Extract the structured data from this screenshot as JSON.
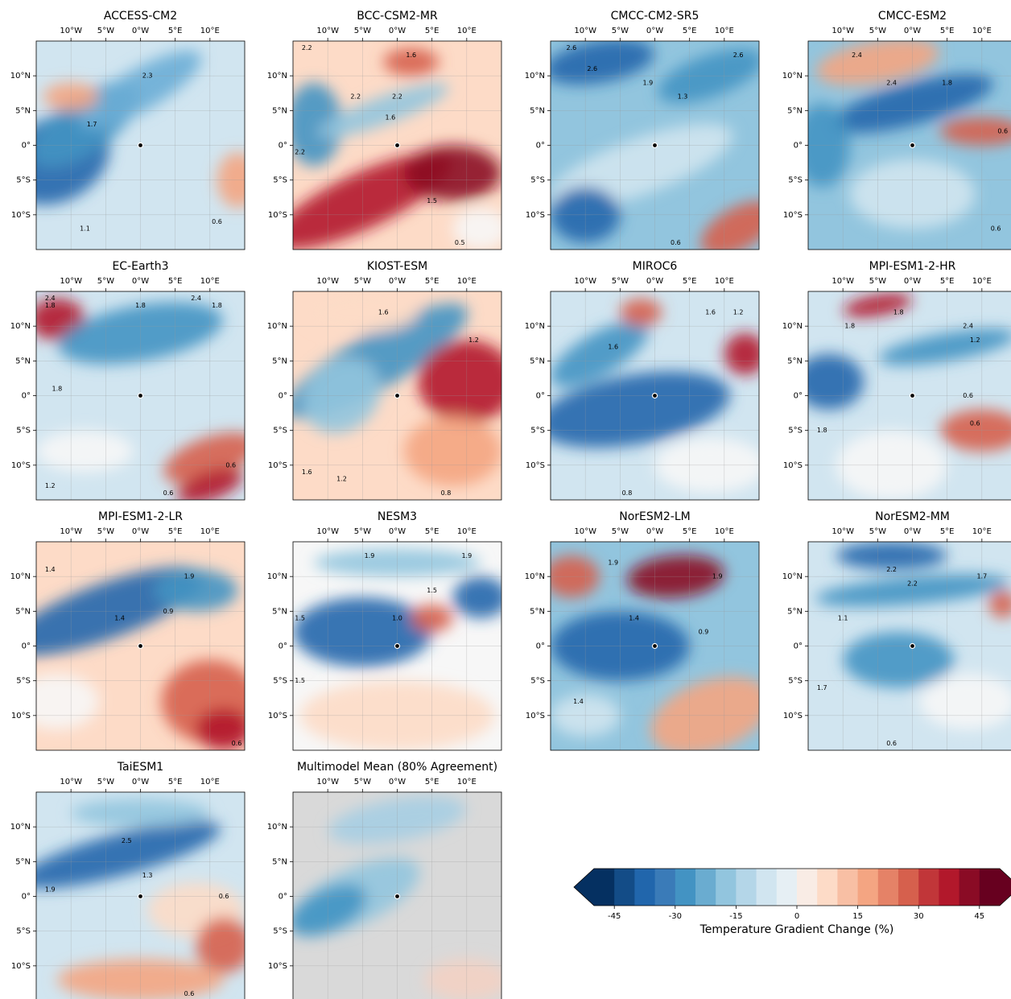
{
  "chart_data": {
    "type": "map",
    "lon_lim": [
      -15,
      15
    ],
    "lat_lim": [
      -15,
      15
    ],
    "lon_ticks": [
      {
        "value": -10,
        "label": "10°W"
      },
      {
        "value": -5,
        "label": "5°W"
      },
      {
        "value": 0,
        "label": "0°W"
      },
      {
        "value": 5,
        "label": "5°E"
      },
      {
        "value": 10,
        "label": "10°E"
      }
    ],
    "lat_ticks": [
      {
        "value": 10,
        "label": "10°N"
      },
      {
        "value": 5,
        "label": "5°N"
      },
      {
        "value": 0,
        "label": "0°"
      },
      {
        "value": -5,
        "label": "5°S"
      },
      {
        "value": -10,
        "label": "10°S"
      }
    ],
    "grid": true,
    "panels": [
      {
        "title": "ACCESS-CM2",
        "contour_labels": [
          2.3,
          1.7,
          1.1,
          0.6
        ]
      },
      {
        "title": "BCC-CSM2-MR",
        "contour_labels": [
          2.2,
          1.6,
          2.2,
          2.2,
          1.6,
          2.2,
          1.5,
          0.5
        ]
      },
      {
        "title": "CMCC-CM2-SR5",
        "contour_labels": [
          2.6,
          2.6,
          2.6,
          1.9,
          1.3,
          0.6
        ]
      },
      {
        "title": "CMCC-ESM2",
        "contour_labels": [
          2.4,
          2.4,
          1.8,
          0.6,
          0.6
        ]
      },
      {
        "title": "EC-Earth3",
        "contour_labels": [
          2.4,
          1.8,
          1.8,
          2.4,
          1.8,
          1.8,
          0.6,
          0.6,
          1.2
        ]
      },
      {
        "title": "KIOST-ESM",
        "contour_labels": [
          1.6,
          1.2,
          1.6,
          1.2,
          0.8
        ]
      },
      {
        "title": "MIROC6",
        "contour_labels": [
          1.6,
          1.6,
          1.2,
          0.8
        ]
      },
      {
        "title": "MPI-ESM1-2-HR",
        "contour_labels": [
          1.8,
          1.8,
          2.4,
          1.2,
          0.6,
          0.6,
          1.8
        ]
      },
      {
        "title": "MPI-ESM1-2-LR",
        "contour_labels": [
          1.4,
          1.9,
          1.4,
          0.9,
          0.6
        ]
      },
      {
        "title": "NESM3",
        "contour_labels": [
          1.9,
          1.9,
          1.5,
          {
            "value": 1,
            "label": "1.0"
          },
          1.5,
          1.5
        ]
      },
      {
        "title": "NorESM2-LM",
        "contour_labels": [
          1.9,
          1.9,
          1.4,
          0.9,
          1.4
        ]
      },
      {
        "title": "NorESM2-MM",
        "contour_labels": [
          2.2,
          2.2,
          1.7,
          1.1,
          1.7,
          0.6
        ]
      },
      {
        "title": "TaiESM1",
        "contour_labels": [
          2.5,
          1.9,
          1.3,
          0.6,
          0.6
        ]
      },
      {
        "title": "Multimodel Mean (80% Agreement)",
        "contour_labels": []
      }
    ],
    "colorbar": {
      "label": "Temperature Gradient Change (%)",
      "lim": [
        -50,
        50
      ],
      "ticks": [
        -45,
        -30,
        -15,
        0,
        15,
        30,
        45
      ],
      "colors": [
        "#053061",
        "#134c87",
        "#2166ac",
        "#3a7bb8",
        "#4393c3",
        "#6aacd0",
        "#92c5de",
        "#b4d6e8",
        "#d1e5f0",
        "#e6eff4",
        "#f9ece5",
        "#fddbc7",
        "#f8bfa4",
        "#f4a582",
        "#e58267",
        "#d6604d",
        "#c13639",
        "#b2182b",
        "#8a0b25",
        "#67001f"
      ]
    }
  }
}
